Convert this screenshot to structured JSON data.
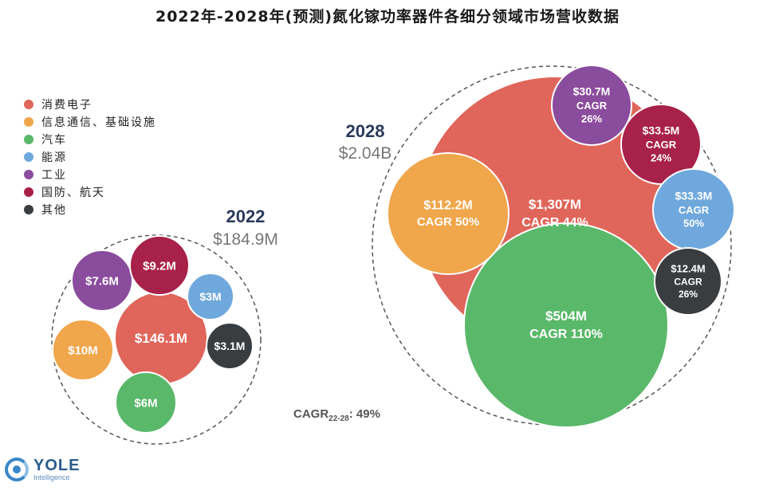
{
  "chart_data": {
    "type": "bubble",
    "title": "2022年-2028年(预测)氮化镓功率器件各细分领域市场营收数据",
    "legend": [
      {
        "name": "消费电子",
        "color": "#e0655a"
      },
      {
        "name": "信息通信、基础设施",
        "color": "#f0a64a"
      },
      {
        "name": "汽车",
        "color": "#5ab86a"
      },
      {
        "name": "能源",
        "color": "#6fa8dc"
      },
      {
        "name": "工业",
        "color": "#8a4c9c"
      },
      {
        "name": "国防、航天",
        "color": "#a8214a"
      },
      {
        "name": "其他",
        "color": "#3a3d40"
      }
    ],
    "groups": [
      {
        "year": "2022",
        "total": "$184.9M",
        "items": [
          {
            "segment": "消费电子",
            "value": 146.1,
            "label": "$146.1M"
          },
          {
            "segment": "信息通信、基础设施",
            "value": 10,
            "label": "$10M"
          },
          {
            "segment": "汽车",
            "value": 6,
            "label": "$6M"
          },
          {
            "segment": "能源",
            "value": 3,
            "label": "$3M"
          },
          {
            "segment": "工业",
            "value": 7.6,
            "label": "$7.6M"
          },
          {
            "segment": "国防、航天",
            "value": 9.2,
            "label": "$9.2M"
          },
          {
            "segment": "其他",
            "value": 3.1,
            "label": "$3.1M"
          }
        ]
      },
      {
        "year": "2028",
        "total": "$2.04B",
        "items": [
          {
            "segment": "消费电子",
            "value": 1307,
            "label": "$1,307M",
            "cagr": "CAGR 44%"
          },
          {
            "segment": "信息通信、基础设施",
            "value": 112.2,
            "label": "$112.2M",
            "cagr": "CAGR 50%"
          },
          {
            "segment": "汽车",
            "value": 504,
            "label": "$504M",
            "cagr": "CAGR 110%"
          },
          {
            "segment": "能源",
            "value": 33.3,
            "label": "$33.3M",
            "cagr": "CAGR",
            "cagr2": "50%"
          },
          {
            "segment": "工业",
            "value": 30.7,
            "label": "$30.7M",
            "cagr": "CAGR",
            "cagr2": "26%"
          },
          {
            "segment": "国防、航天",
            "value": 33.5,
            "label": "$33.5M",
            "cagr": "CAGR",
            "cagr2": "24%"
          },
          {
            "segment": "其他",
            "value": 12.4,
            "label": "$12.4M",
            "cagr": "CAGR",
            "cagr2": "26%"
          }
        ]
      }
    ],
    "overall_cagr": {
      "prefix": "CAGR",
      "subscript": "22-28",
      "suffix": ": 49%"
    }
  },
  "logo": {
    "name": "YOLE",
    "sub": "Intelligence"
  }
}
